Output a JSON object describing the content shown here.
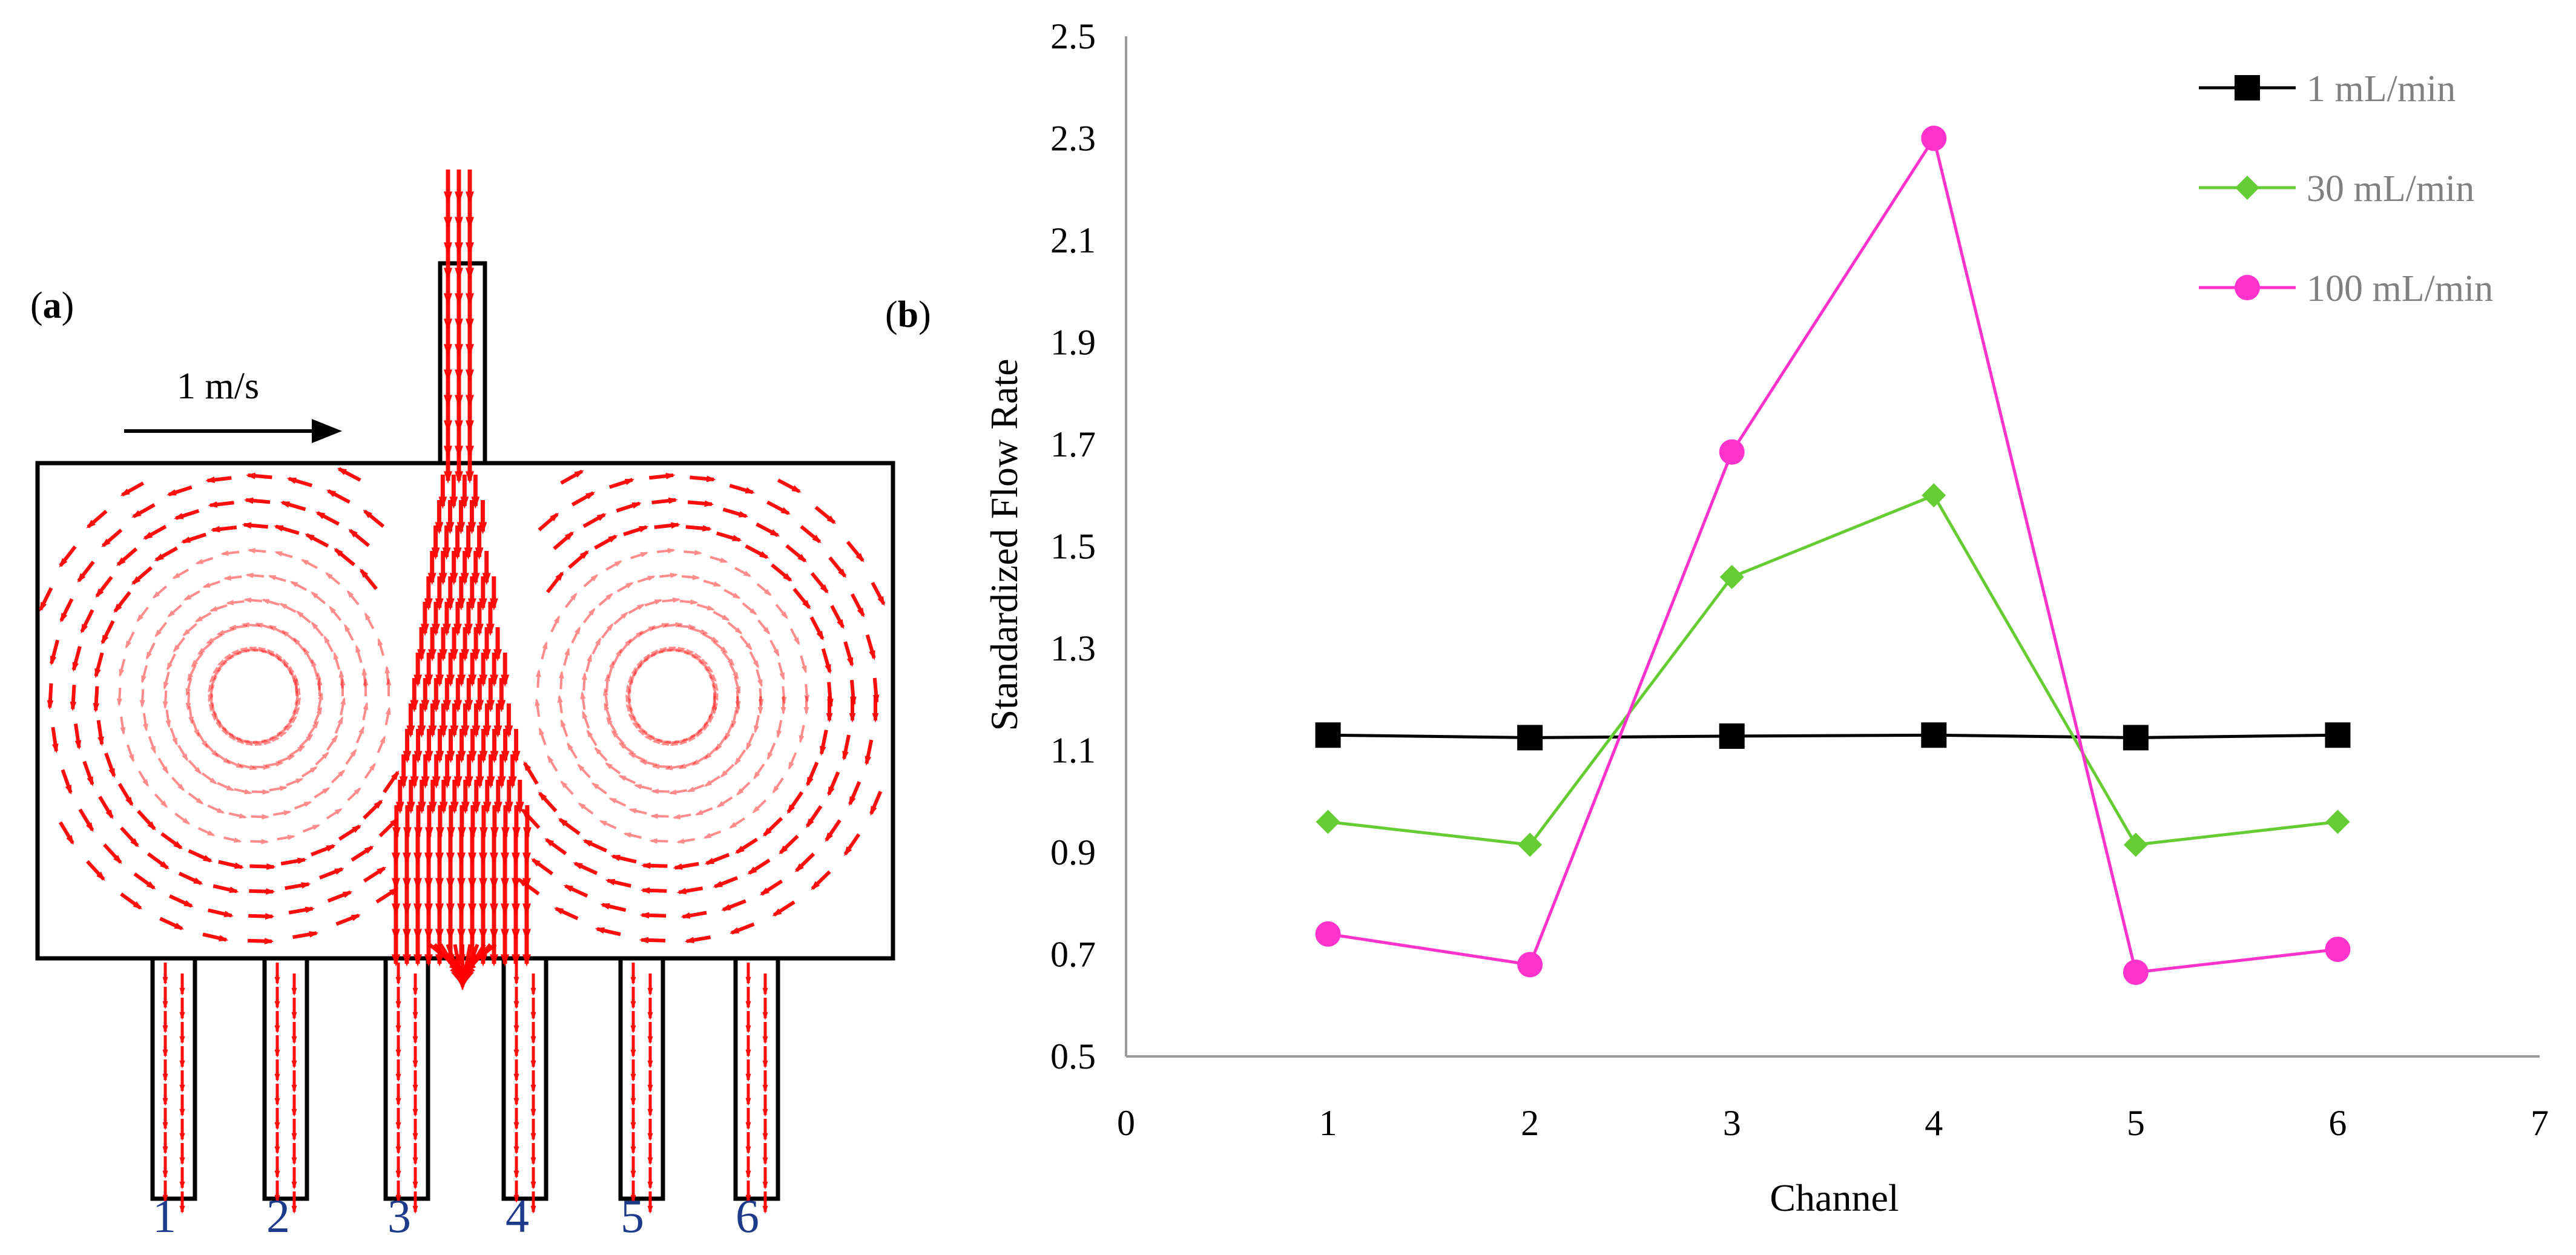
{
  "panel_a": {
    "label_open": "(",
    "label_letter": "a",
    "label_close": ")",
    "scale_label": "1 m/s",
    "channel_labels": [
      "1",
      "2",
      "3",
      "4",
      "5",
      "6"
    ],
    "arrow_color": "#ff0000"
  },
  "panel_b": {
    "label_open": "(",
    "label_letter": "b",
    "label_close": ")"
  },
  "chart_data": {
    "type": "line",
    "title": "",
    "xlabel": "Channel",
    "ylabel": "Standardized Flow Rate",
    "xlim": [
      0,
      7
    ],
    "ylim": [
      0.5,
      2.5
    ],
    "x_ticks": [
      0,
      1,
      2,
      3,
      4,
      5,
      6,
      7
    ],
    "y_ticks": [
      0.5,
      0.7,
      0.9,
      1.1,
      1.3,
      1.5,
      1.7,
      1.9,
      2.1,
      2.3,
      2.5
    ],
    "y_tick_labels": [
      "0.5",
      "0.7",
      "0.9",
      "1.1",
      "1.3",
      "1.5",
      "1.7",
      "1.9",
      "2.1",
      "2.3",
      "2.5"
    ],
    "x_tick_labels": [
      "0",
      "1",
      "2",
      "3",
      "4",
      "5",
      "6",
      "7"
    ],
    "grid": false,
    "legend_position": "top-right",
    "x": [
      1,
      2,
      3,
      4,
      5,
      6
    ],
    "series": [
      {
        "name": "1 mL/min",
        "color": "#000000",
        "marker": "square",
        "values": [
          1.13,
          1.125,
          1.128,
          1.13,
          1.125,
          1.13
        ]
      },
      {
        "name": "30 mL/min",
        "color": "#66cc33",
        "marker": "diamond",
        "values": [
          0.96,
          0.915,
          1.44,
          1.6,
          0.915,
          0.96
        ]
      },
      {
        "name": "100 mL/min",
        "color": "#ff33cc",
        "marker": "circle",
        "values": [
          0.74,
          0.68,
          1.685,
          2.3,
          0.665,
          0.71
        ]
      }
    ]
  }
}
